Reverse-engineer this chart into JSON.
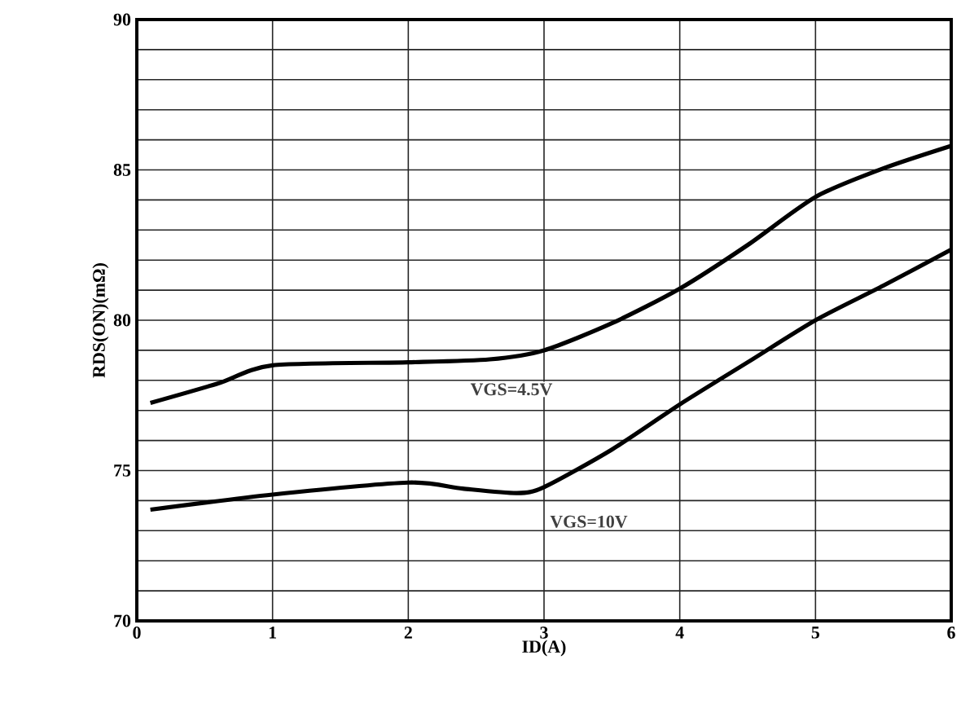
{
  "chart_data": {
    "type": "line",
    "xlabel": "ID(A)",
    "ylabel": "RDS(ON)(mΩ)",
    "x": [
      0.1,
      0.6,
      1,
      2,
      2.6,
      3,
      3.5,
      4,
      4.5,
      5,
      5.5,
      6
    ],
    "series": [
      {
        "color": "#000000",
        "values": [
          77.25,
          77.9,
          78.5,
          78.6,
          78.7,
          79.0,
          79.9,
          81.05,
          82.5,
          84.1,
          85.05,
          85.8
        ]
      },
      {
        "color": "#000000",
        "x": [
          0.1,
          1,
          2,
          2.4,
          2.8,
          3,
          3.5,
          4,
          4.5,
          5,
          5.5,
          6
        ],
        "values": [
          73.7,
          74.2,
          74.6,
          74.4,
          74.25,
          74.45,
          75.7,
          77.2,
          78.6,
          80.0,
          81.15,
          82.35
        ]
      }
    ],
    "annotations": [
      "VGS=4.5V",
      "VGS=10V"
    ],
    "xlim": [
      0,
      6
    ],
    "xticks": [
      0,
      1,
      2,
      3,
      4,
      5,
      6
    ],
    "ylim": [
      70,
      90
    ],
    "yticks": [
      70,
      {
        "value": 71,
        "label": null
      },
      {
        "value": 72,
        "label": null
      },
      {
        "value": 73,
        "label": null
      },
      {
        "value": 74,
        "label": null
      },
      75,
      {
        "value": 76,
        "label": null
      },
      {
        "value": 77,
        "label": null
      },
      {
        "value": 78,
        "label": null
      },
      {
        "value": 79,
        "label": null
      },
      80,
      {
        "value": 81,
        "label": null
      },
      {
        "value": 82,
        "label": null
      },
      {
        "value": 83,
        "label": null
      },
      {
        "value": 84,
        "label": null
      },
      85,
      {
        "value": 86,
        "label": null
      },
      {
        "value": 87,
        "label": null
      },
      {
        "value": 88,
        "label": null
      },
      {
        "value": 89,
        "label": null
      },
      90
    ],
    "grid": true,
    "marker": "none",
    "line_style": "solid"
  }
}
